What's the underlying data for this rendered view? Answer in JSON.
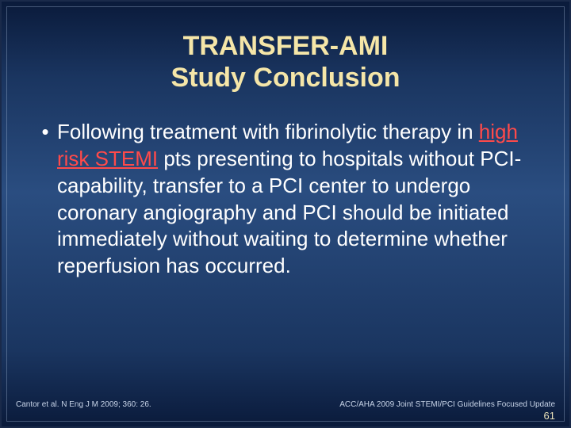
{
  "colors": {
    "title": "#f5e6a8",
    "body_text": "#ffffff",
    "emphasis": "#ff4a4a",
    "footer": "#c8d4e8",
    "page_number": "#e8e0b8",
    "bg_top": "#0a1a3a",
    "bg_mid": "#2a4d80"
  },
  "title": {
    "line1": "TRANSFER-AMI",
    "line2": "Study Conclusion"
  },
  "bullet": {
    "marker": "•",
    "pre": "Following treatment with fibrinolytic therapy in ",
    "emphasis": "high risk STEMI",
    "post": " pts presenting to hospitals without PCI-capability, transfer to a PCI center to undergo coronary angiography and PCI should be initiated immediately without waiting to determine whether reperfusion has occurred."
  },
  "footer": {
    "left": "Cantor et al. N Eng J M 2009; 360: 26.",
    "right": "ACC/AHA 2009 Joint STEMI/PCI Guidelines Focused Update"
  },
  "page_number": "61"
}
